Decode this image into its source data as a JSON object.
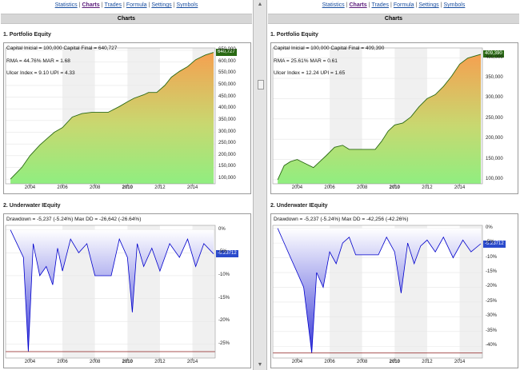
{
  "nav": {
    "items": [
      {
        "label": "Statistics",
        "active": false
      },
      {
        "label": "Charts",
        "active": true
      },
      {
        "label": "Trades",
        "active": false
      },
      {
        "label": "Formula",
        "active": false
      },
      {
        "label": "Settings",
        "active": false
      },
      {
        "label": "Symbols",
        "active": false
      }
    ],
    "separator": "|"
  },
  "page_title": "Charts",
  "colors": {
    "equity_line": "#2a6a14",
    "equity_fill_low": "#90ee80",
    "equity_fill_high": "#f5a050",
    "equity_flag": "#2a6a14",
    "drawdown_line": "#0000cc",
    "drawdown_fill": "#3a3ad8",
    "drawdown_flag": "#2a4acc",
    "max_dd_line": "#8b1a1a"
  },
  "panes": [
    {
      "equity_title": "1. Portfolio Equity",
      "stats": {
        "capital": "Capital Inicial = 100,000   Capital Final = 640,727",
        "rma": "RMA = 44.76%    MAR = 1.68",
        "ulcer": "Ulcer Index = 9.10    UPI = 4.33"
      },
      "equity_flag": "640,727",
      "underwater_title": "2. Underwater IEquity",
      "drawdown_text": "Drawdown = -5,237 (-5.24%)       Max DD = -26,642 (-26.64%)",
      "drawdown_flag": "-5.23712"
    },
    {
      "equity_title": "1. Portfolio Equity",
      "stats": {
        "capital": "Capital Inicial = 100,000   Capital Final = 409,390",
        "rma": "RMA = 25.61%    MAR = 0.61",
        "ulcer": "Ulcer Index = 12.24    UPI = 1.65"
      },
      "equity_flag": "409,390",
      "underwater_title": "2. Underwater IEquity",
      "drawdown_text": "Drawdown = -5,237 (-5.24%)       Max DD = -42,256 (-42.26%)",
      "drawdown_flag": "-5.23712"
    }
  ],
  "chart_data": [
    {
      "type": "area",
      "title": "1. Portfolio Equity",
      "x": [
        2002.8,
        2003.5,
        2004.0,
        2004.6,
        2005.0,
        2005.5,
        2006.0,
        2006.6,
        2007.2,
        2007.8,
        2008.1,
        2008.8,
        2009.5,
        2010.0,
        2010.4,
        2011.0,
        2011.3,
        2011.8,
        2012.3,
        2012.7,
        2013.2,
        2013.7,
        2014.2,
        2014.8,
        2015.3
      ],
      "values": [
        100000,
        150000,
        200000,
        245000,
        270000,
        300000,
        320000,
        365000,
        380000,
        385000,
        385000,
        385000,
        410000,
        430000,
        445000,
        460000,
        470000,
        470000,
        500000,
        535000,
        560000,
        580000,
        610000,
        630000,
        640727
      ],
      "ylim": [
        80000,
        660000
      ],
      "yticks": [
        "650,000",
        "600,000",
        "550,000",
        "500,000",
        "450,000",
        "400,000",
        "350,000",
        "300,000",
        "250,000",
        "200,000",
        "150,000",
        "100,000"
      ],
      "xticks": [
        "2004",
        "2006",
        "2008",
        "2010",
        "2012",
        "2014"
      ],
      "xlim": [
        2002.5,
        2015.4
      ]
    },
    {
      "type": "area",
      "title": "2. Underwater IEquity",
      "x": [
        2002.8,
        2003.2,
        2003.6,
        2003.9,
        2004.2,
        2004.6,
        2005.0,
        2005.4,
        2005.7,
        2006.0,
        2006.5,
        2007.0,
        2007.5,
        2008.0,
        2008.5,
        2009.0,
        2009.5,
        2010.0,
        2010.3,
        2010.6,
        2011.0,
        2011.5,
        2012.0,
        2012.6,
        2013.2,
        2013.7,
        2014.2,
        2014.7,
        2015.3
      ],
      "values": [
        0,
        -3,
        -6,
        -26.6,
        -3,
        -10,
        -8,
        -12,
        -4,
        -9,
        -2,
        -5,
        -3,
        -10,
        -10,
        -10,
        -2,
        -6,
        -18,
        -3,
        -8,
        -4,
        -9,
        -3,
        -6,
        -2,
        -8,
        -3,
        -5.24
      ],
      "ylim": [
        -28,
        1
      ],
      "yticks": [
        "0%",
        "-5%",
        "-10%",
        "-15%",
        "-20%",
        "-25%"
      ],
      "xticks": [
        "2004",
        "2006",
        "2008",
        "2010",
        "2012",
        "2014"
      ],
      "xlim": [
        2002.5,
        2015.4
      ]
    },
    {
      "type": "area",
      "title": "1. Portfolio Equity",
      "x": [
        2002.8,
        2003.2,
        2003.6,
        2004.0,
        2004.5,
        2005.0,
        2005.4,
        2005.8,
        2006.3,
        2006.8,
        2007.2,
        2007.8,
        2008.3,
        2008.8,
        2009.2,
        2009.6,
        2010.0,
        2010.5,
        2011.0,
        2011.5,
        2012.0,
        2012.5,
        2013.0,
        2013.5,
        2014.0,
        2014.5,
        2015.3
      ],
      "values": [
        100000,
        135000,
        145000,
        150000,
        140000,
        130000,
        145000,
        160000,
        180000,
        185000,
        175000,
        175000,
        175000,
        175000,
        195000,
        220000,
        235000,
        240000,
        255000,
        280000,
        300000,
        310000,
        330000,
        355000,
        385000,
        400000,
        409390
      ],
      "ylim": [
        90000,
        425000
      ],
      "yticks": [
        "400,000",
        "350,000",
        "300,000",
        "250,000",
        "200,000",
        "150,000",
        "100,000"
      ],
      "xticks": [
        "2004",
        "2006",
        "2008",
        "2010",
        "2012",
        "2014"
      ],
      "xlim": [
        2002.5,
        2015.4
      ]
    },
    {
      "type": "area",
      "title": "2. Underwater IEquity",
      "x": [
        2002.8,
        2003.2,
        2003.6,
        2004.0,
        2004.4,
        2004.9,
        2005.2,
        2005.6,
        2006.0,
        2006.4,
        2006.8,
        2007.2,
        2007.6,
        2008.0,
        2008.5,
        2009.0,
        2009.5,
        2010.0,
        2010.4,
        2010.8,
        2011.2,
        2011.6,
        2012.0,
        2012.5,
        2013.0,
        2013.6,
        2014.2,
        2014.7,
        2015.3
      ],
      "values": [
        0,
        -5,
        -10,
        -15,
        -20,
        -42.3,
        -15,
        -20,
        -8,
        -12,
        -5,
        -3,
        -9,
        -9,
        -9,
        -9,
        -3,
        -8,
        -22,
        -5,
        -12,
        -6,
        -4,
        -8,
        -3,
        -10,
        -4,
        -8,
        -5.24
      ],
      "ylim": [
        -44,
        1
      ],
      "yticks": [
        "0%",
        "-5%",
        "-10%",
        "-15%",
        "-20%",
        "-25%",
        "-30%",
        "-35%",
        "-40%"
      ],
      "xticks": [
        "2004",
        "2006",
        "2008",
        "2010",
        "2012",
        "2014"
      ],
      "xlim": [
        2002.5,
        2015.4
      ]
    }
  ]
}
